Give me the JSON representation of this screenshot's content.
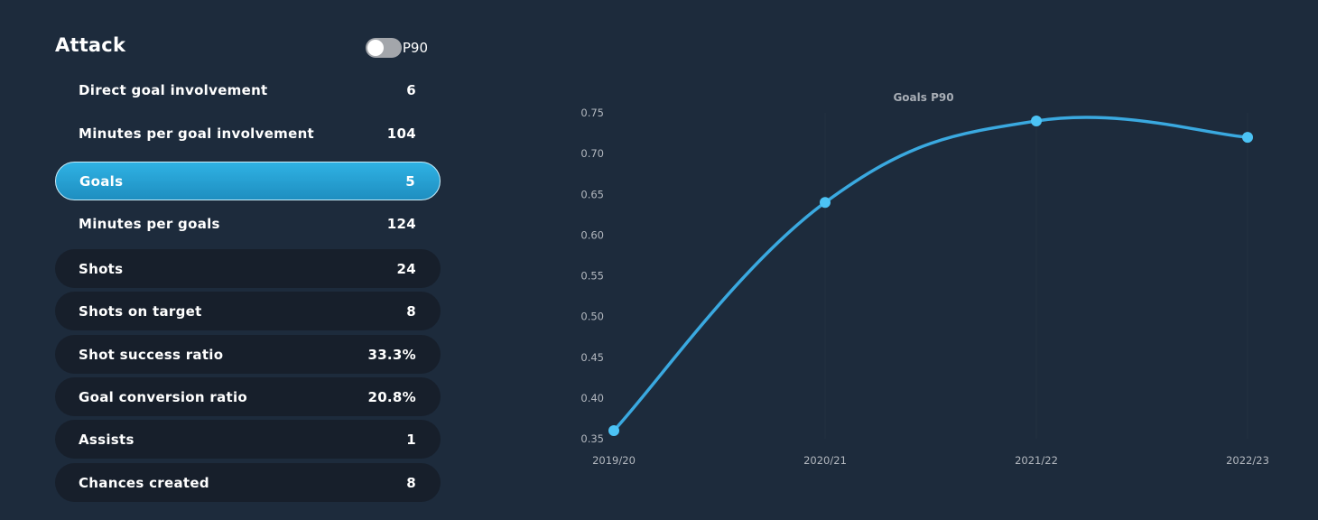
{
  "panel": {
    "title": "Attack",
    "toggle_label": "P90",
    "toggle_on": false,
    "rows": [
      {
        "label": "Direct goal involvement",
        "value": "6",
        "style": "plain"
      },
      {
        "label": "Minutes per goal involvement",
        "value": "104",
        "style": "plain"
      },
      {
        "label": "Goals",
        "value": "5",
        "style": "active"
      },
      {
        "label": "Minutes per goals",
        "value": "124",
        "style": "plain"
      },
      {
        "label": "Shots",
        "value": "24",
        "style": "dark"
      },
      {
        "label": "Shots on target",
        "value": "8",
        "style": "dark"
      },
      {
        "label": "Shot success ratio",
        "value": "33.3%",
        "style": "dark"
      },
      {
        "label": "Goal conversion ratio",
        "value": "20.8%",
        "style": "dark"
      },
      {
        "label": "Assists",
        "value": "1",
        "style": "dark"
      },
      {
        "label": "Chances created",
        "value": "8",
        "style": "dark"
      }
    ]
  },
  "chart_data": {
    "type": "line",
    "title": "Goals P90",
    "categories": [
      "2019/20",
      "2020/21",
      "2021/22",
      "2022/23"
    ],
    "values": [
      0.36,
      0.64,
      0.74,
      0.72
    ],
    "ylim": [
      0.35,
      0.75
    ],
    "yticks": [
      "0.75",
      "0.70",
      "0.65",
      "0.60",
      "0.55",
      "0.50",
      "0.45",
      "0.40",
      "0.35"
    ],
    "line_color": "#3aa9e0",
    "point_color": "#4cc3f5",
    "grid": "vertical"
  }
}
